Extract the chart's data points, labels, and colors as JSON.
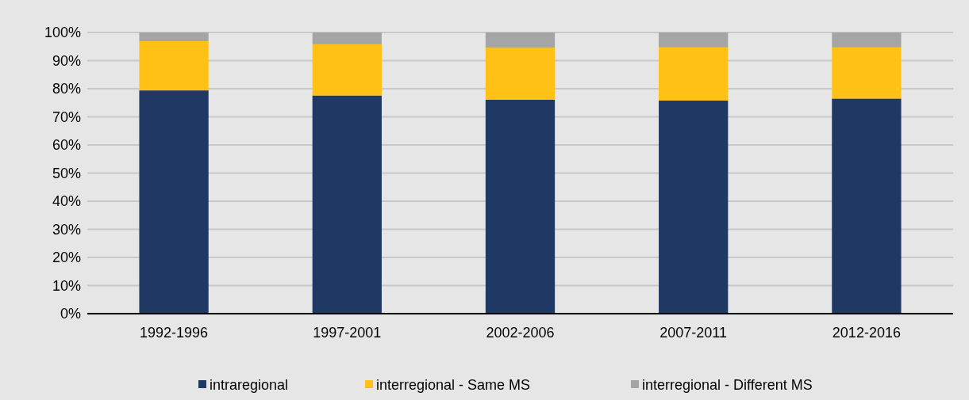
{
  "chart_data": {
    "type": "bar",
    "stacked": true,
    "categories": [
      "1992-1996",
      "1997-2001",
      "2002-2006",
      "2007-2011",
      "2012-2016"
    ],
    "series": [
      {
        "name": "intraregional",
        "color": "#1f3864",
        "values": [
          79.4,
          77.6,
          76.1,
          75.8,
          76.5
        ]
      },
      {
        "name": "interregional - Same MS",
        "color": "#ffc115",
        "values": [
          17.5,
          18.2,
          18.5,
          18.9,
          18.2
        ]
      },
      {
        "name": "interregional - Different MS",
        "color": "#a5a5a5",
        "values": [
          3.1,
          4.2,
          5.4,
          5.3,
          5.3
        ]
      }
    ],
    "ylim": [
      0,
      100
    ],
    "yticks": [
      {
        "value": 0,
        "label": "0%"
      },
      {
        "value": 10,
        "label": "10%"
      },
      {
        "value": 20,
        "label": "20%"
      },
      {
        "value": 30,
        "label": "30%"
      },
      {
        "value": 40,
        "label": "40%"
      },
      {
        "value": 50,
        "label": "50%"
      },
      {
        "value": 60,
        "label": "60%"
      },
      {
        "value": 70,
        "label": "70%"
      },
      {
        "value": 80,
        "label": "80%"
      },
      {
        "value": 90,
        "label": "90%"
      },
      {
        "value": 100,
        "label": "100%"
      }
    ],
    "grid": "y",
    "legend": "bottom"
  }
}
